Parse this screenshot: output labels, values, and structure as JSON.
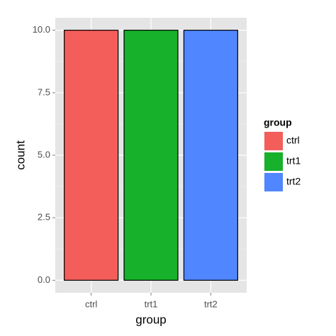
{
  "chart_data": {
    "type": "bar",
    "categories": [
      "ctrl",
      "trt1",
      "trt2"
    ],
    "values": [
      10,
      10,
      10
    ],
    "colors": [
      "#f35e5a",
      "#17b12b",
      "#5086ff"
    ],
    "xlabel": "group",
    "ylabel": "count",
    "ylim": [
      -0.5,
      10.5
    ],
    "yticks": [
      {
        "value": 0,
        "label": "0.0"
      },
      {
        "value": 2.5,
        "label": "2.5"
      },
      {
        "value": 5,
        "label": "5.0"
      },
      {
        "value": 7.5,
        "label": "7.5"
      },
      {
        "value": 10,
        "label": "10.0"
      }
    ],
    "grid": true,
    "legend": {
      "title": "group",
      "position": "right"
    }
  }
}
